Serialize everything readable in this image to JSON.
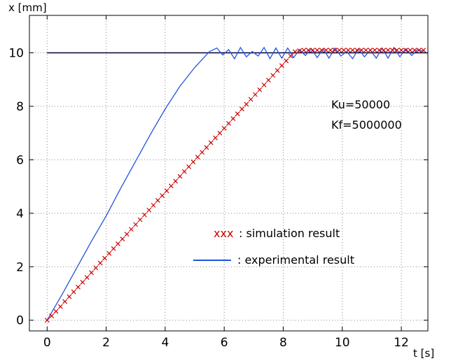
{
  "chart_data": {
    "type": "line",
    "xlabel": "t [s]",
    "ylabel": "x [mm]",
    "xlim": [
      -0.6,
      12.9
    ],
    "ylim": [
      -0.4,
      11.4
    ],
    "xticks": [
      0,
      2,
      4,
      6,
      8,
      10,
      12
    ],
    "yticks": [
      0,
      2,
      4,
      6,
      8,
      10
    ],
    "grid": true,
    "annotations": [
      "Ku=50000",
      "Kf=5000000"
    ],
    "legend": {
      "placement": "lower-right",
      "entries": [
        {
          "marker": "xxx",
          "label": ": simulation result"
        },
        {
          "marker": "",
          "label": ": experimental result"
        }
      ]
    },
    "series": [
      {
        "label": "xxx : simulation result",
        "color": "#cc0000",
        "marker": "x",
        "x": [
          0,
          0.15,
          0.3,
          0.45,
          0.6,
          0.75,
          0.9,
          1.05,
          1.2,
          1.35,
          1.5,
          1.65,
          1.8,
          1.95,
          2.1,
          2.25,
          2.4,
          2.55,
          2.7,
          2.85,
          3.0,
          3.15,
          3.3,
          3.45,
          3.6,
          3.75,
          3.9,
          4.05,
          4.2,
          4.35,
          4.5,
          4.65,
          4.8,
          4.95,
          5.1,
          5.25,
          5.4,
          5.55,
          5.7,
          5.85,
          6.0,
          6.15,
          6.3,
          6.45,
          6.6,
          6.75,
          6.9,
          7.05,
          7.2,
          7.35,
          7.5,
          7.65,
          7.8,
          7.95,
          8.1,
          8.25,
          8.4,
          8.55,
          8.7,
          8.85,
          9.0,
          9.15,
          9.3,
          9.45,
          9.6,
          9.75,
          9.9,
          10.05,
          10.2,
          10.35,
          10.5,
          10.65,
          10.8,
          10.95,
          11.1,
          11.25,
          11.4,
          11.55,
          11.7,
          11.85,
          12.0,
          12.15,
          12.3,
          12.45,
          12.6,
          12.75
        ],
        "y": [
          0,
          0.16,
          0.33,
          0.51,
          0.7,
          0.88,
          1.06,
          1.24,
          1.42,
          1.6,
          1.78,
          1.96,
          2.14,
          2.32,
          2.5,
          2.68,
          2.86,
          3.04,
          3.22,
          3.4,
          3.58,
          3.76,
          3.94,
          4.12,
          4.3,
          4.48,
          4.66,
          4.84,
          5.02,
          5.2,
          5.38,
          5.56,
          5.74,
          5.92,
          6.1,
          6.28,
          6.46,
          6.64,
          6.82,
          7.0,
          7.18,
          7.36,
          7.54,
          7.72,
          7.9,
          8.08,
          8.26,
          8.44,
          8.62,
          8.8,
          8.98,
          9.16,
          9.34,
          9.52,
          9.7,
          9.88,
          10.04,
          10.08,
          10.1,
          10.1,
          10.1,
          10.1,
          10.1,
          10.1,
          10.1,
          10.1,
          10.1,
          10.1,
          10.1,
          10.1,
          10.1,
          10.1,
          10.1,
          10.1,
          10.1,
          10.1,
          10.1,
          10.1,
          10.1,
          10.1,
          10.1,
          10.1,
          10.1,
          10.1,
          10.1,
          10.1
        ]
      },
      {
        "label": ": experimental result",
        "color": "#2255dd",
        "marker": "",
        "x": [
          0,
          0.5,
          1.0,
          1.5,
          2.0,
          2.5,
          3.0,
          3.5,
          4.0,
          4.5,
          5.0,
          5.5,
          5.75,
          5.95,
          6.15,
          6.35,
          6.55,
          6.75,
          6.95,
          7.15,
          7.35,
          7.55,
          7.75,
          7.95,
          8.15,
          8.35,
          8.55,
          8.75,
          8.95,
          9.15,
          9.35,
          9.55,
          9.75,
          9.95,
          10.15,
          10.35,
          10.55,
          10.75,
          10.95,
          11.15,
          11.35,
          11.55,
          11.75,
          11.95,
          12.15,
          12.35,
          12.55,
          12.75
        ],
        "y": [
          0,
          0.95,
          1.95,
          2.95,
          3.9,
          4.95,
          5.95,
          6.95,
          7.9,
          8.75,
          9.45,
          10.05,
          10.18,
          9.92,
          10.12,
          9.78,
          10.2,
          9.85,
          10.05,
          9.88,
          10.2,
          9.78,
          10.18,
          9.8,
          10.18,
          9.82,
          10.12,
          9.9,
          10.15,
          9.82,
          10.15,
          9.8,
          10.18,
          9.88,
          10.05,
          9.78,
          10.15,
          9.85,
          10.1,
          9.8,
          10.18,
          9.8,
          10.2,
          9.85,
          10.15,
          9.9,
          10.12,
          10.05
        ]
      },
      {
        "label": "",
        "color": "#000033",
        "marker": "",
        "x": [
          0,
          12.9
        ],
        "y": [
          10,
          10
        ]
      }
    ]
  }
}
